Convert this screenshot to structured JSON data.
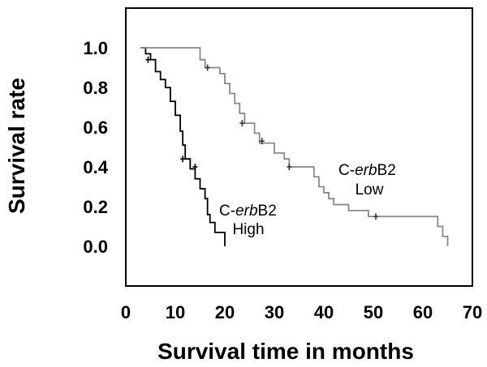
{
  "chart_data": {
    "type": "line",
    "xlabel": "Survival time in months",
    "ylabel": "Survival rate",
    "xlim": [
      0,
      70
    ],
    "ylim": [
      -0.2,
      1.2
    ],
    "x_ticks": [
      0,
      10,
      20,
      30,
      40,
      50,
      60,
      70
    ],
    "y_ticks": [
      "0.0",
      "0.2",
      "0.4",
      "0.6",
      "0.8",
      "1.0"
    ],
    "grid": false,
    "series": [
      {
        "name": "C-erbB2 High",
        "color": "#000000",
        "points": [
          [
            3,
            1.0
          ],
          [
            4,
            0.97
          ],
          [
            5,
            0.94
          ],
          [
            6,
            0.88
          ],
          [
            7,
            0.84
          ],
          [
            8,
            0.8
          ],
          [
            9,
            0.73
          ],
          [
            10,
            0.66
          ],
          [
            11,
            0.58
          ],
          [
            11.5,
            0.51
          ],
          [
            12,
            0.44
          ],
          [
            13,
            0.39
          ],
          [
            14,
            0.34
          ],
          [
            15,
            0.29
          ],
          [
            16,
            0.24
          ],
          [
            16.5,
            0.16
          ],
          [
            17,
            0.12
          ],
          [
            18,
            0.07
          ],
          [
            20,
            0.0
          ]
        ],
        "censored": [
          [
            4.5,
            0.94
          ],
          [
            11.5,
            0.44
          ],
          [
            14,
            0.4
          ]
        ]
      },
      {
        "name": "C-erbB2 Low",
        "color": "#888888",
        "points": [
          [
            3,
            1.0
          ],
          [
            14,
            1.0
          ],
          [
            15,
            0.94
          ],
          [
            16,
            0.9
          ],
          [
            18,
            0.9
          ],
          [
            19,
            0.87
          ],
          [
            20,
            0.82
          ],
          [
            21,
            0.77
          ],
          [
            22,
            0.72
          ],
          [
            23,
            0.67
          ],
          [
            24,
            0.62
          ],
          [
            26,
            0.57
          ],
          [
            27,
            0.52
          ],
          [
            30,
            0.47
          ],
          [
            32,
            0.44
          ],
          [
            33,
            0.4
          ],
          [
            37,
            0.4
          ],
          [
            38,
            0.35
          ],
          [
            39,
            0.3
          ],
          [
            40,
            0.27
          ],
          [
            41,
            0.24
          ],
          [
            42,
            0.21
          ],
          [
            45,
            0.18
          ],
          [
            49,
            0.15
          ],
          [
            62,
            0.15
          ],
          [
            63,
            0.1
          ],
          [
            64,
            0.05
          ],
          [
            65,
            0.0
          ]
        ],
        "censored": [
          [
            16.5,
            0.9
          ],
          [
            23.5,
            0.62
          ],
          [
            27.5,
            0.53
          ],
          [
            33,
            0.4
          ],
          [
            50.5,
            0.15
          ]
        ]
      }
    ],
    "annotations": [
      {
        "line1_prefix": "C-",
        "line1_italic": "erb",
        "line1_suffix": "B2",
        "line2": "High"
      },
      {
        "line1_prefix": "C-",
        "line1_italic": "erb",
        "line1_suffix": "B2",
        "line2": "Low"
      }
    ]
  }
}
